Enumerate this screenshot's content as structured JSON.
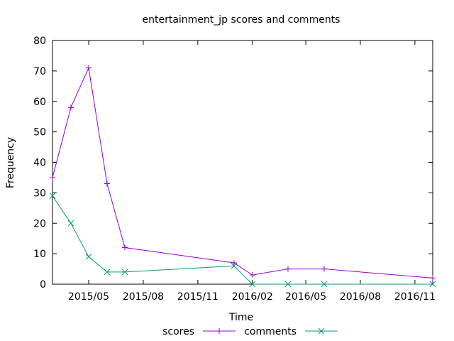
{
  "chart_data": {
    "type": "line",
    "title": "entertainment_jp scores and comments",
    "xlabel": "Time",
    "ylabel": "Frequency",
    "xlim": [
      "2015-03-01",
      "2016-12-01"
    ],
    "ylim": [
      0,
      80
    ],
    "yticks": [
      0,
      10,
      20,
      30,
      40,
      50,
      60,
      70,
      80
    ],
    "xticks": [
      {
        "date": "2015-05-01",
        "label": "2015/05"
      },
      {
        "date": "2015-08-01",
        "label": "2015/08"
      },
      {
        "date": "2015-11-01",
        "label": "2015/11"
      },
      {
        "date": "2016-02-01",
        "label": "2016/02"
      },
      {
        "date": "2016-05-01",
        "label": "2016/05"
      },
      {
        "date": "2016-08-01",
        "label": "2016/08"
      },
      {
        "date": "2016-11-01",
        "label": "2016/11"
      }
    ],
    "grid": false,
    "legend_position": "bottom",
    "series": [
      {
        "name": "scores",
        "color": "#9400d3",
        "marker": "plus",
        "points": [
          {
            "x": "2015-03-01",
            "y": 35
          },
          {
            "x": "2015-04-01",
            "y": 58
          },
          {
            "x": "2015-05-01",
            "y": 71
          },
          {
            "x": "2015-06-01",
            "y": 33
          },
          {
            "x": "2015-07-01",
            "y": 12
          },
          {
            "x": "2016-01-01",
            "y": 7
          },
          {
            "x": "2016-02-01",
            "y": 3
          },
          {
            "x": "2016-04-01",
            "y": 5
          },
          {
            "x": "2016-06-01",
            "y": 5
          },
          {
            "x": "2016-12-01",
            "y": 2
          }
        ]
      },
      {
        "name": "comments",
        "color": "#009e73",
        "marker": "cross",
        "points": [
          {
            "x": "2015-03-01",
            "y": 29
          },
          {
            "x": "2015-04-01",
            "y": 20
          },
          {
            "x": "2015-05-01",
            "y": 9
          },
          {
            "x": "2015-06-01",
            "y": 4
          },
          {
            "x": "2015-07-01",
            "y": 4
          },
          {
            "x": "2016-01-01",
            "y": 6
          },
          {
            "x": "2016-02-01",
            "y": 0
          },
          {
            "x": "2016-04-01",
            "y": 0
          },
          {
            "x": "2016-06-01",
            "y": 0
          },
          {
            "x": "2016-12-01",
            "y": 0
          }
        ]
      }
    ]
  }
}
